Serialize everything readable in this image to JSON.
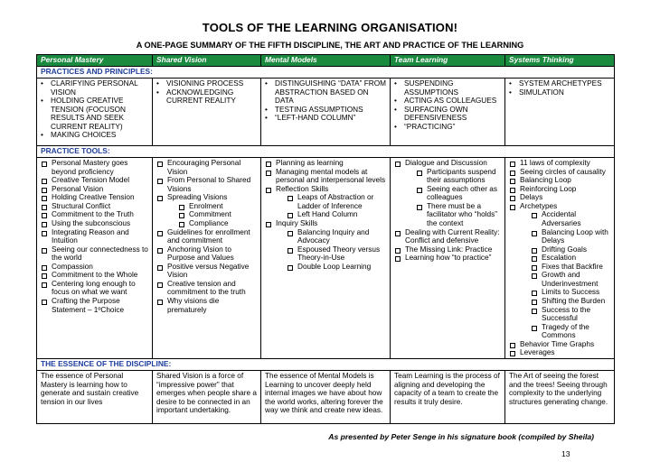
{
  "title": "TOOLS OF THE LEARNING ORGANISATION!",
  "subtitle": "A ONE-PAGE SUMMARY OF THE FIFTH DISCIPLINE, THE ART AND PRACTICE OF THE LEARNING",
  "headers": [
    "Personal Mastery",
    "Shared Vision",
    "Mental Models",
    "Team Learning",
    "Systems Thinking"
  ],
  "section_principles": "PRACTICES AND PRINCIPLES:",
  "section_tools": "PRACTICE TOOLS:",
  "section_essence": "THE ESSENCE OF THE DISCIPLINE:",
  "principles": [
    [
      "CLARIFYING PERSONAL VISION",
      "HOLDING CREATIVE TENSION (FOCUSON RESULTS AND SEEK CURRENT REALITY)",
      "MAKING CHOICES"
    ],
    [
      "VISIONING PROCESS",
      "ACKNOWLEDGING CURRENT REALITY"
    ],
    [
      "DISTINGUISHING “DATA” FROM ABSTRACTION BASED ON DATA",
      "TESTING ASSUMPTIONS",
      "“LEFT-HAND COLUMN”"
    ],
    [
      "SUSPENDING ASSUMPTIONS",
      "ACTING AS COLLEAGUES",
      "SURFACING OWN DEFENSIVENESS",
      "“PRACTICING”"
    ],
    [
      "SYSTEM ARCHETYPES",
      "SIMULATION"
    ]
  ],
  "tools": {
    "personal_mastery": [
      {
        "text": "Personal Mastery goes beyond proficiency"
      },
      {
        "text": "Creative Tension Model"
      },
      {
        "text": "Personal Vision"
      },
      {
        "text": "Holding Creative Tension"
      },
      {
        "text": "Structural Conflict"
      },
      {
        "text": "Commitment to the Truth"
      },
      {
        "text": "Using the subconscious"
      },
      {
        "text": "Integrating Reason and Intuition"
      },
      {
        "text": "Seeing our connectedness to the world"
      },
      {
        "text": "Compassion"
      },
      {
        "text": "Commitment to the Whole"
      },
      {
        "text": "Centering long enough to focus on what we want"
      },
      {
        "text": "Crafting the Purpose Statement – 1ºChoice"
      }
    ],
    "shared_vision": [
      {
        "text": "Encouraging Personal Vision"
      },
      {
        "text": "From Personal to Shared Visions"
      },
      {
        "text": "Spreading Visions",
        "sub": [
          "Enrolment",
          "Commitment",
          "Compliance"
        ]
      },
      {
        "text": "Guidelines for enrollment and commitment"
      },
      {
        "text": "Anchoring Vision to Purpose and Values"
      },
      {
        "text": "Positive versus Negative Vision"
      },
      {
        "text": "Creative tension and commitment to the truth"
      },
      {
        "text": "Why visions die prematurely"
      }
    ],
    "mental_models": [
      {
        "text": "Planning as learning"
      },
      {
        "text": "Managing mental models at personal and interpersonal levels"
      },
      {
        "text": "Reflection Skills",
        "sub": [
          "Leaps of Abstraction or Ladder of Inference",
          "Left Hand Column"
        ]
      },
      {
        "text": "Inquiry Skills",
        "sub": [
          "Balancing Inquiry and Advocacy",
          "Espoused Theory versus Theory-in-Use",
          "Double Loop Learning"
        ]
      }
    ],
    "team_learning": [
      {
        "text": "Dialogue and Discussion",
        "sub": [
          "Participants suspend their assumptions",
          "Seeing each other as colleagues",
          "There must be a facilitator who “holds” the context"
        ]
      },
      {
        "text": "Dealing with Current Reality: Conflict and defensive"
      },
      {
        "text": "The Missing Link: Practice"
      },
      {
        "text": "Learning how “to practice”"
      }
    ],
    "systems_thinking": [
      {
        "text": "11 laws of complexity"
      },
      {
        "text": "Seeing circles of causality"
      },
      {
        "text": "Balancing Loop"
      },
      {
        "text": "Reinforcing Loop"
      },
      {
        "text": "Delays"
      },
      {
        "text": "Archetypes",
        "sub": [
          "Accidental Adversaries",
          "Balancing Loop with Delays",
          "Drifting Goals",
          "Escalation",
          "Fixes that Backfire",
          "Growth and Underinvestment",
          "Limits to Success",
          "Shifting the Burden",
          "Success to the Successful",
          "Tragedy of the Commons"
        ]
      },
      {
        "text": "Behavior Time Graphs"
      },
      {
        "text": "Leverages"
      }
    ]
  },
  "essence": [
    "The essence of Personal Mastery is learning how to generate and sustain creative tension in our lives",
    "Shared Vision is a force of “impressive power” that emerges when people share a desire to be connected in an important undertaking.",
    "The essence of Mental Models is Learning to uncover deeply held internal images we have about how the world works, altering forever the way we think and create new ideas.",
    "Team Learning is the process of aligning and developing the capacity of a team to create the results it truly desire.",
    "The Art of seeing the forest and the trees! Seeing through complexity to the underlying structures generating change."
  ],
  "footnote": "As presented by Peter Senge in his signature book (compiled by Sheila)",
  "page_number": "13",
  "colors": {
    "header_bg": "#1a8a3e",
    "section_text": "#1f3f9e"
  }
}
